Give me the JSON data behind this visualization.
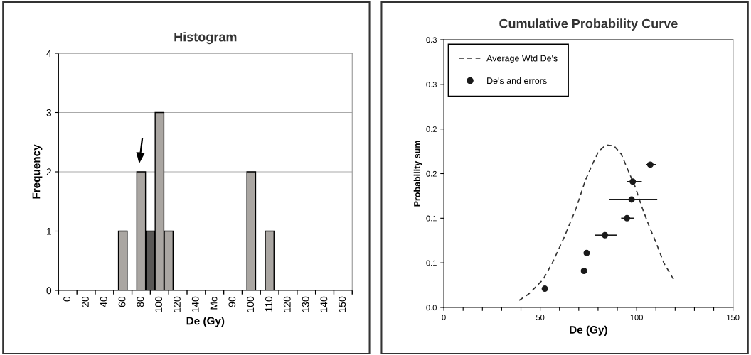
{
  "chart_data": [
    {
      "type": "bar",
      "title": "Histogram",
      "xlabel": "De (Gy)",
      "ylabel": "Frequency",
      "categories": [
        "0",
        null,
        "20",
        null,
        "40",
        null,
        "60",
        null,
        "80",
        null,
        "100",
        null,
        "120",
        null,
        "140",
        null,
        "Mo",
        null,
        "90",
        null,
        "100",
        null,
        "110",
        null,
        "120",
        null,
        "130",
        null,
        "140",
        null,
        "150"
      ],
      "values": [
        0,
        0,
        0,
        0,
        0,
        0,
        1,
        0,
        2,
        1,
        3,
        1,
        0,
        0,
        0,
        0,
        0,
        0,
        0,
        0,
        2,
        0,
        1,
        0,
        0,
        0,
        0,
        0,
        0,
        0,
        0
      ],
      "colors": [
        "#aaa6a2",
        "#aaa6a2",
        "#aaa6a2",
        "#aaa6a2",
        "#aaa6a2",
        "#aaa6a2",
        "#aaa6a2",
        "#aaa6a2",
        "#aaa6a2",
        "#5a5856",
        "#aaa6a2",
        "#aaa6a2",
        "#aaa6a2",
        "#aaa6a2",
        "#aaa6a2",
        "#aaa6a2",
        "#aaa6a2",
        "#aaa6a2",
        "#aaa6a2",
        "#aaa6a2",
        "#aaa6a2",
        "#aaa6a2",
        "#aaa6a2",
        "#aaa6a2",
        "#aaa6a2",
        "#aaa6a2",
        "#aaa6a2",
        "#aaa6a2",
        "#aaa6a2",
        "#aaa6a2",
        "#aaa6a2"
      ],
      "ylim": [
        0,
        4
      ],
      "yticks": [
        0,
        1,
        2,
        3,
        4
      ],
      "grid": "y"
    },
    {
      "type": "scatter",
      "title": "Cumulative Probability Curve",
      "xlabel": "De (Gy)",
      "ylabel": "Probability sum",
      "series": [
        {
          "name": "Average Wtd De's",
          "type": "line",
          "color": "#333333",
          "line_style": "dashed",
          "marker": "none",
          "x": [
            39.1,
            44,
            51.4,
            56.3,
            62.5,
            68.6,
            73.5,
            77.2,
            80.3,
            84,
            88.3,
            92,
            95.7,
            99.3,
            103,
            106.7,
            110.4,
            114.1,
            119.6
          ],
          "values": [
            0.008,
            0.015,
            0.031,
            0.05,
            0.079,
            0.111,
            0.143,
            0.161,
            0.175,
            0.182,
            0.181,
            0.172,
            0.153,
            0.135,
            0.111,
            0.09,
            0.071,
            0.05,
            0.03
          ]
        },
        {
          "name": "De's and errors",
          "type": "scatter",
          "color": "#1a1a1a",
          "marker": "circle",
          "line_style": "solid",
          "x": [
            52.4,
            72.7,
            74.1,
            83.6,
            95.0,
            97.4,
            98.0,
            107.1
          ],
          "values": [
            0.021,
            0.041,
            0.061,
            0.081,
            0.1,
            0.121,
            0.141,
            0.16
          ],
          "xerrors": [
            null,
            null,
            null,
            [
              78.7,
              89.3
            ],
            [
              92.3,
              98.5
            ],
            [
              86.2,
              110.4
            ],
            [
              95.4,
              102.4
            ],
            [
              105.2,
              109.8
            ]
          ]
        }
      ],
      "xlim": [
        0,
        150
      ],
      "xticks": [
        0,
        {
          "value": 10,
          "label": null
        },
        {
          "value": 20,
          "label": null
        },
        {
          "value": 30,
          "label": null
        },
        {
          "value": 40,
          "label": null
        },
        50,
        {
          "value": 60,
          "label": null
        },
        {
          "value": 70,
          "label": null
        },
        {
          "value": 80,
          "label": null
        },
        {
          "value": 90,
          "label": null
        },
        100,
        {
          "value": 110,
          "label": null
        },
        {
          "value": 120,
          "label": null
        },
        {
          "value": 130,
          "label": null
        },
        {
          "value": 140,
          "label": null
        },
        150
      ],
      "ylim": [
        0,
        0.3
      ],
      "yticks": [
        {
          "value": 0,
          "label": "0.0"
        },
        {
          "value": 0.05,
          "label": "0.1"
        },
        {
          "value": 0.1,
          "label": "0.1"
        },
        {
          "value": 0.15,
          "label": "0.2"
        },
        {
          "value": 0.2,
          "label": "0.2"
        },
        {
          "value": 0.25,
          "label": "0.3"
        },
        {
          "value": 0.3,
          "label": "0.3"
        }
      ],
      "grid": false,
      "legend": "top left"
    }
  ]
}
